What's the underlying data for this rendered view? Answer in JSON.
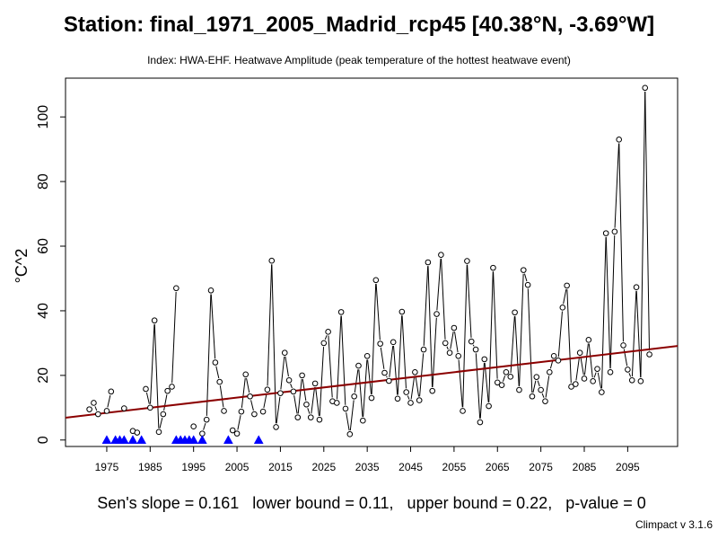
{
  "chart_data": {
    "type": "line",
    "title": "Station: final_1971_2005_Madrid_rcp45 [40.38°N, -3.69°W]",
    "subtitle": "Index: HWA-EHF. Heatwave Amplitude (peak temperature of the hottest heatwave event)",
    "ylabel": "°C^2",
    "xlabel": "",
    "xlim": [
      1965.5,
      2106.5
    ],
    "ylim": [
      -2,
      112
    ],
    "x_ticks": [
      1975,
      1985,
      1995,
      2005,
      2015,
      2025,
      2035,
      2045,
      2055,
      2065,
      2075,
      2085,
      2095
    ],
    "y_ticks": [
      0,
      20,
      40,
      60,
      80,
      100
    ],
    "x": [
      1971,
      1972,
      1973,
      1974,
      1975,
      1976,
      1977,
      1978,
      1979,
      1980,
      1981,
      1982,
      1983,
      1984,
      1985,
      1986,
      1987,
      1988,
      1989,
      1990,
      1991,
      1992,
      1993,
      1994,
      1995,
      1996,
      1997,
      1998,
      1999,
      2000,
      2001,
      2002,
      2003,
      2004,
      2005,
      2006,
      2007,
      2008,
      2009,
      2010,
      2011,
      2012,
      2013,
      2014,
      2015,
      2016,
      2017,
      2018,
      2019,
      2020,
      2021,
      2022,
      2023,
      2024,
      2025,
      2026,
      2027,
      2028,
      2029,
      2030,
      2031,
      2032,
      2033,
      2034,
      2035,
      2036,
      2037,
      2038,
      2039,
      2040,
      2041,
      2042,
      2043,
      2044,
      2045,
      2046,
      2047,
      2048,
      2049,
      2050,
      2051,
      2052,
      2053,
      2054,
      2055,
      2056,
      2057,
      2058,
      2059,
      2060,
      2061,
      2062,
      2063,
      2064,
      2065,
      2066,
      2067,
      2068,
      2069,
      2070,
      2071,
      2072,
      2073,
      2074,
      2075,
      2076,
      2077,
      2078,
      2079,
      2080,
      2081,
      2082,
      2083,
      2084,
      2085,
      2086,
      2087,
      2088,
      2089,
      2090,
      2091,
      2092,
      2093,
      2094,
      2095,
      2096,
      2097,
      2098,
      2099,
      2100
    ],
    "series": [
      {
        "values": [
          9.5,
          11.5,
          8.0,
          null,
          9.0,
          15.0,
          null,
          null,
          9.8,
          null,
          2.8,
          2.3,
          null,
          15.8,
          10.0,
          37.0,
          2.5,
          8.0,
          15.2,
          16.5,
          47.0,
          null,
          null,
          null,
          4.2,
          null,
          2.0,
          6.3,
          46.3,
          24.0,
          18.0,
          9.0,
          null,
          3.0,
          2.0,
          8.8,
          20.3,
          13.5,
          8.0,
          null,
          8.8,
          15.6,
          55.5,
          4.0,
          14.5,
          27.0,
          18.5,
          15.0,
          7.0,
          20.0,
          11.0,
          7.0,
          17.5,
          6.3,
          30.0,
          33.5,
          12.0,
          11.5,
          39.6,
          9.7,
          1.8,
          13.5,
          23.0,
          6.0,
          26.0,
          13.0,
          49.5,
          29.8,
          20.8,
          18.3,
          30.3,
          12.8,
          39.7,
          14.8,
          11.5,
          21.0,
          12.3,
          28.0,
          55.0,
          15.2,
          39.0,
          57.3,
          30.0,
          27.0,
          34.7,
          26.0,
          9.0,
          55.4,
          30.5,
          28.0,
          5.5,
          25.0,
          10.5,
          53.3,
          17.8,
          17.0,
          21.0,
          19.6,
          39.5,
          15.5,
          52.6,
          48.0,
          13.5,
          19.5,
          15.5,
          12.0,
          21.0,
          26.0,
          24.6,
          41.0,
          47.8,
          16.5,
          17.3,
          27.0,
          19.0,
          31.0,
          18.2,
          22.0,
          14.8,
          64.0,
          21.0,
          64.5,
          93.0,
          29.3,
          21.8,
          18.5,
          47.3,
          18.2,
          109.0,
          26.5
        ]
      }
    ],
    "zero_markers_x": [
      1975,
      1977,
      1978,
      1979,
      1981,
      1983,
      1991,
      1992,
      1993,
      1994,
      1995,
      1997,
      2003,
      2010
    ],
    "trend": {
      "x": [
        1965.5,
        2106.5
      ],
      "y": [
        6.9,
        29.1
      ]
    },
    "trend_color": "#8b0000",
    "marker_color": "#0000ff",
    "grid": false,
    "legend": "none"
  },
  "footer": {
    "stats": "Sen's slope = 0.161   lower bound = 0.11,   upper bound = 0.22,   p-value = 0",
    "credit": "Climpact v 3.1.6"
  }
}
